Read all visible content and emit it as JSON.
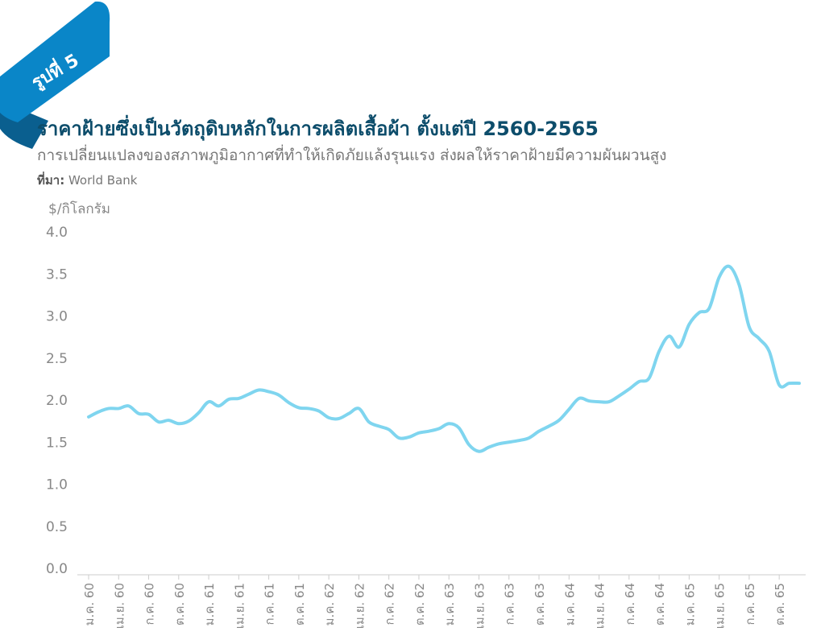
{
  "badge": {
    "label": "รูปที่ 5"
  },
  "header": {
    "title": "ราคาฝ้ายซึ่งเป็นวัตถุดิบหลักในการผลิตเสื้อผ้า ตั้งแต่ปี 2560-2565",
    "subtitle": "การเปลี่ยนแปลงของสภาพภูมิอากาศที่ทำให้เกิดภัยแล้งรุนแรง ส่งผลให้ราคาฝ้ายมีความผันผวนสูง",
    "source_label": "ที่มา:",
    "source_value": "World Bank"
  },
  "colors": {
    "line": "#7fd5ef",
    "badge": "#0a86c8",
    "title": "#0d4d6b"
  },
  "chart_data": {
    "type": "line",
    "ylabel": "$/กิโลกรัม",
    "ylim": [
      0,
      4
    ],
    "yticks": [
      "4.0",
      "3.5",
      "3.0",
      "2.5",
      "2.0",
      "1.5",
      "1.0",
      "0.5",
      "0.0"
    ],
    "grid": false,
    "xticks": [
      "ม.ค. 60",
      "เม.ย. 60",
      "ก.ค. 60",
      "ต.ค. 60",
      "ม.ค. 61",
      "เม.ย. 61",
      "ก.ค. 61",
      "ต.ค. 61",
      "ม.ค. 62",
      "เม.ย. 62",
      "ก.ค. 62",
      "ต.ค. 62",
      "ม.ค. 63",
      "เม.ย. 63",
      "ก.ค. 63",
      "ต.ค. 63",
      "ม.ค. 64",
      "เม.ย. 64",
      "ก.ค. 64",
      "ต.ค. 64",
      "ม.ค. 65",
      "เม.ย. 65",
      "ก.ค. 65",
      "ต.ค. 65"
    ],
    "x": [
      "ม.ค. 60",
      "ก.พ. 60",
      "มี.ค. 60",
      "เม.ย. 60",
      "พ.ค. 60",
      "มิ.ย. 60",
      "ก.ค. 60",
      "ส.ค. 60",
      "ก.ย. 60",
      "ต.ค. 60",
      "พ.ย. 60",
      "ธ.ค. 60",
      "ม.ค. 61",
      "ก.พ. 61",
      "มี.ค. 61",
      "เม.ย. 61",
      "พ.ค. 61",
      "มิ.ย. 61",
      "ก.ค. 61",
      "ส.ค. 61",
      "ก.ย. 61",
      "ต.ค. 61",
      "พ.ย. 61",
      "ธ.ค. 61",
      "ม.ค. 62",
      "ก.พ. 62",
      "มี.ค. 62",
      "เม.ย. 62",
      "พ.ค. 62",
      "มิ.ย. 62",
      "ก.ค. 62",
      "ส.ค. 62",
      "ก.ย. 62",
      "ต.ค. 62",
      "พ.ย. 62",
      "ธ.ค. 62",
      "ม.ค. 63",
      "ก.พ. 63",
      "มี.ค. 63",
      "เม.ย. 63",
      "พ.ค. 63",
      "มิ.ย. 63",
      "ก.ค. 63",
      "ส.ค. 63",
      "ก.ย. 63",
      "ต.ค. 63",
      "พ.ย. 63",
      "ธ.ค. 63",
      "ม.ค. 64",
      "ก.พ. 64",
      "มี.ค. 64",
      "เม.ย. 64",
      "พ.ค. 64",
      "มิ.ย. 64",
      "ก.ค. 64",
      "ส.ค. 64",
      "ก.ย. 64",
      "ต.ค. 64",
      "พ.ย. 64",
      "ธ.ค. 64",
      "ม.ค. 65",
      "ก.พ. 65",
      "มี.ค. 65",
      "เม.ย. 65",
      "พ.ค. 65",
      "มิ.ย. 65",
      "ก.ค. 65",
      "ส.ค. 65",
      "ก.ย. 65",
      "ต.ค. 65",
      "พ.ย. 65",
      "ธ.ค. 65"
    ],
    "values": [
      1.8,
      1.86,
      1.9,
      1.9,
      1.93,
      1.84,
      1.83,
      1.74,
      1.76,
      1.72,
      1.75,
      1.85,
      1.98,
      1.93,
      2.01,
      2.02,
      2.07,
      2.12,
      2.1,
      2.06,
      1.97,
      1.91,
      1.9,
      1.87,
      1.79,
      1.78,
      1.84,
      1.9,
      1.74,
      1.69,
      1.65,
      1.55,
      1.56,
      1.61,
      1.63,
      1.66,
      1.72,
      1.67,
      1.47,
      1.39,
      1.44,
      1.48,
      1.5,
      1.52,
      1.55,
      1.63,
      1.69,
      1.76,
      1.89,
      2.02,
      1.99,
      1.98,
      1.98,
      2.05,
      2.13,
      2.22,
      2.26,
      2.58,
      2.76,
      2.63,
      2.9,
      3.04,
      3.09,
      3.46,
      3.59,
      3.37,
      2.87,
      2.73,
      2.58,
      2.18,
      2.2,
      2.2
    ]
  }
}
